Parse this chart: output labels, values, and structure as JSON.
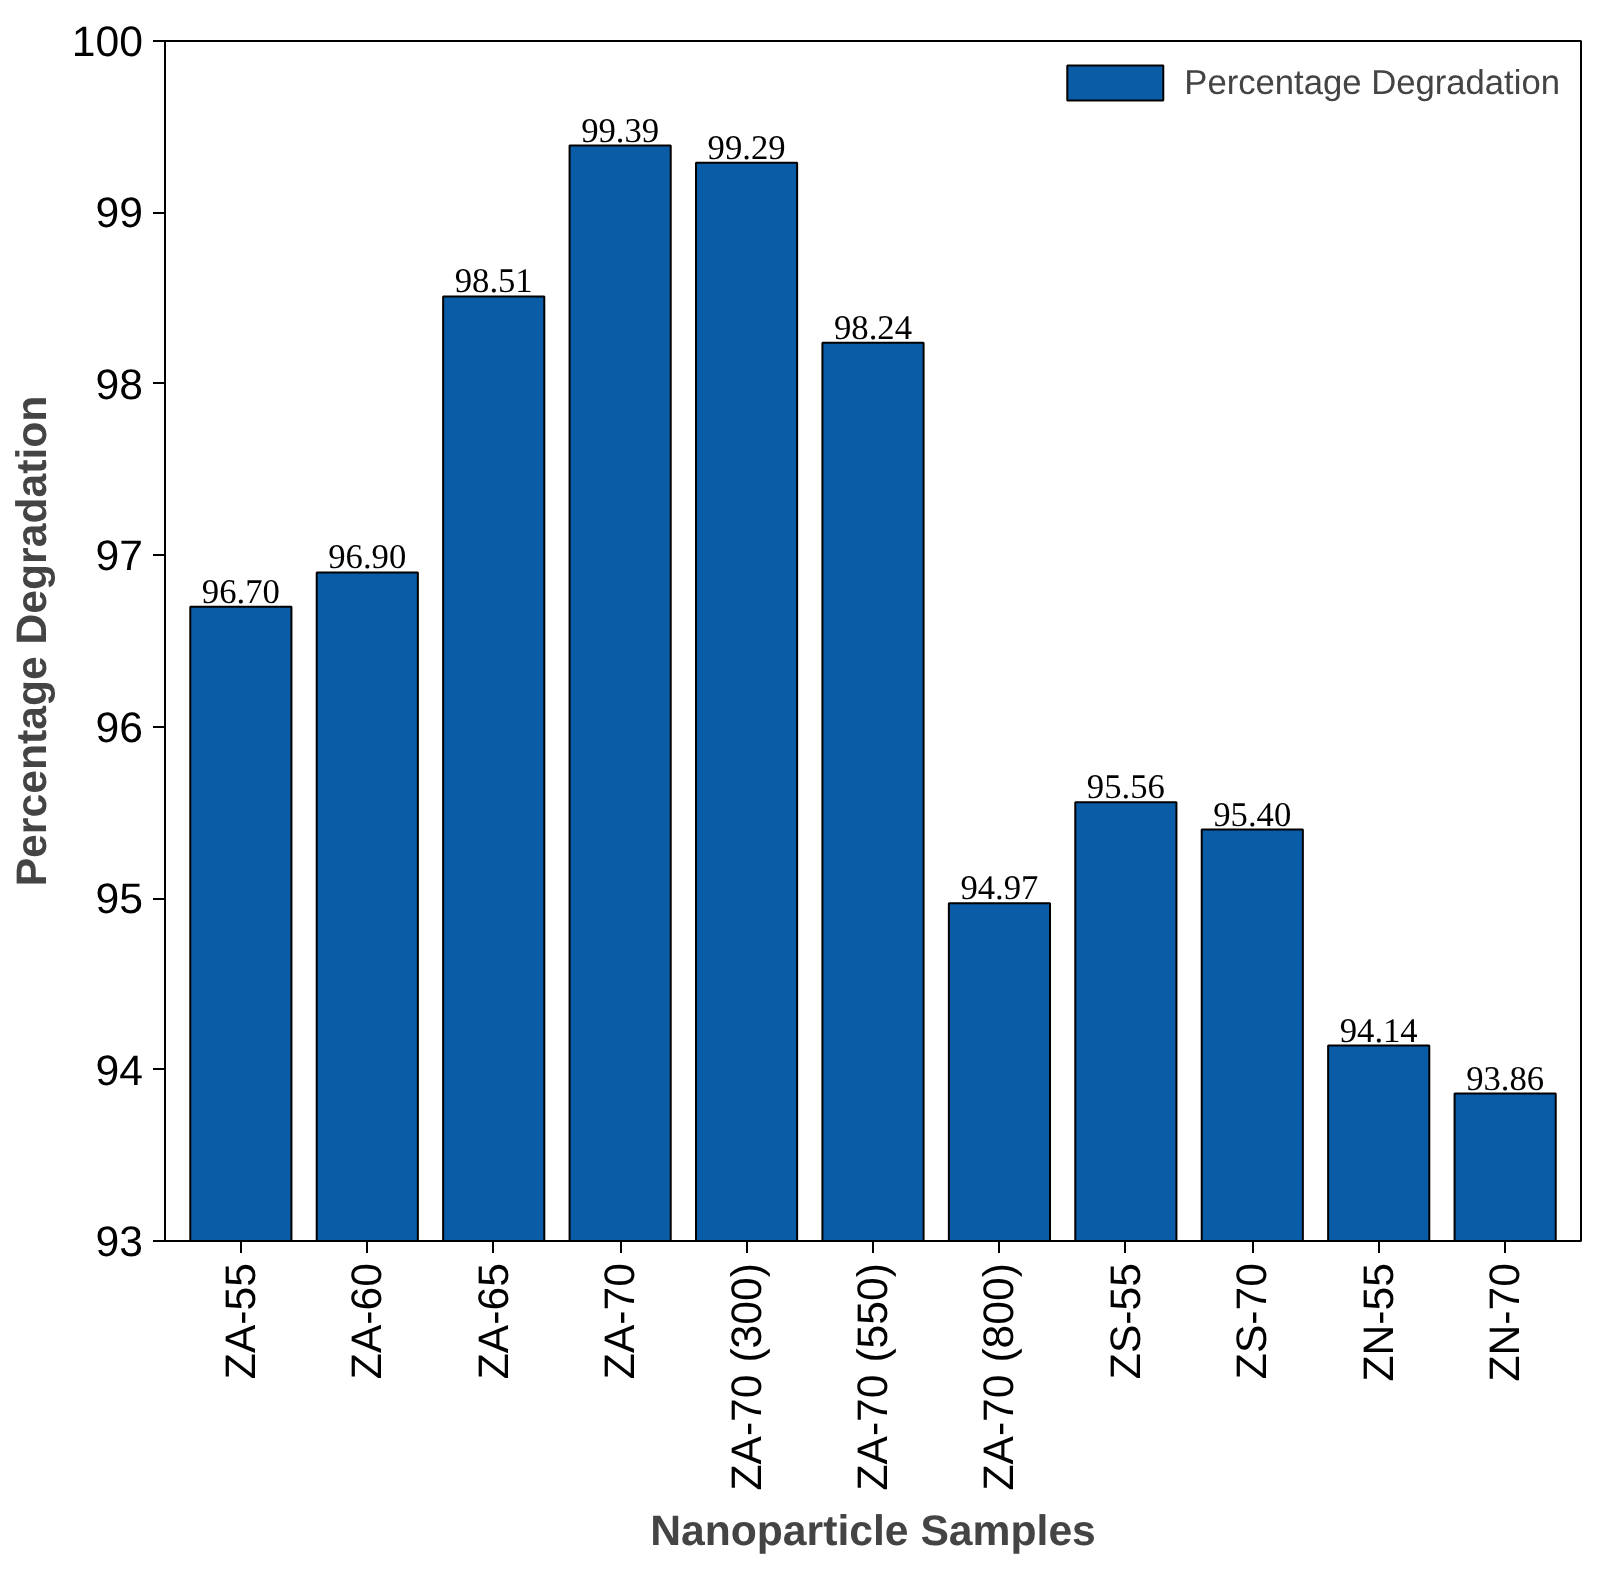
{
  "chart_data": {
    "type": "bar",
    "xlabel": "Nanoparticle Samples",
    "ylabel": "Percentage Degradation",
    "categories": [
      "ZA-55",
      "ZA-60",
      "ZA-65",
      "ZA-70",
      "ZA-70 (300)",
      "ZA-70 (550)",
      "ZA-70 (800)",
      "ZS-55",
      "ZS-70",
      "ZN-55",
      "ZN-70"
    ],
    "series": [
      {
        "name": "Percentage Degradation",
        "color": "#0a5ca6",
        "values": [
          96.7,
          96.9,
          98.51,
          99.39,
          99.29,
          98.24,
          94.97,
          95.56,
          95.4,
          94.14,
          93.86
        ]
      }
    ],
    "value_labels": [
      "96.70",
      "96.90",
      "98.51",
      "99.39",
      "99.29",
      "98.24",
      "94.97",
      "95.56",
      "95.40",
      "94.14",
      "93.86"
    ],
    "ylim": [
      93,
      100
    ],
    "yticks": [
      93,
      94,
      95,
      96,
      97,
      98,
      99,
      100
    ],
    "grid": false,
    "legend": "top right"
  }
}
